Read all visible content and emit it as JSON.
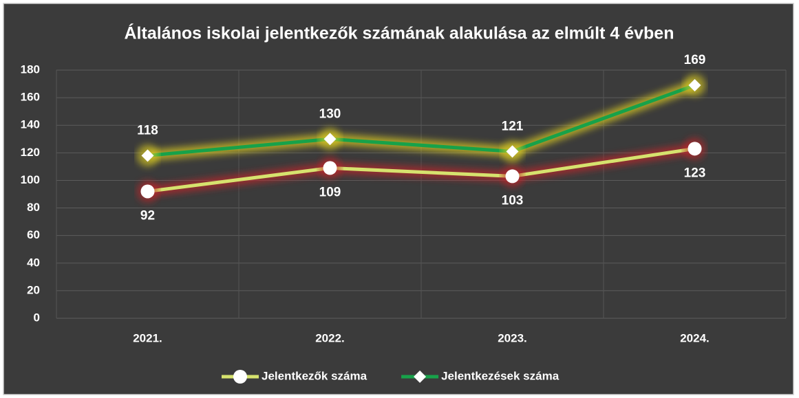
{
  "chart_data": {
    "type": "line",
    "title": "Általános iskolai jelentkezők számának alakulása az elmúlt 4 évben",
    "categories": [
      "2021.",
      "2022.",
      "2023.",
      "2024."
    ],
    "series": [
      {
        "name": "Jelentkezők száma",
        "color": "#d6e26e",
        "glow": "#c0282a",
        "marker": "circle",
        "values": [
          92,
          109,
          103,
          123
        ]
      },
      {
        "name": "Jelentkezések száma",
        "color": "#17a24a",
        "glow": "#e0d020",
        "marker": "diamond",
        "values": [
          118,
          130,
          121,
          169
        ]
      }
    ],
    "ylim": [
      0,
      180
    ],
    "yticks": [
      0,
      20,
      40,
      60,
      80,
      100,
      120,
      140,
      160,
      180
    ],
    "grid": true,
    "legend": "bottom"
  }
}
